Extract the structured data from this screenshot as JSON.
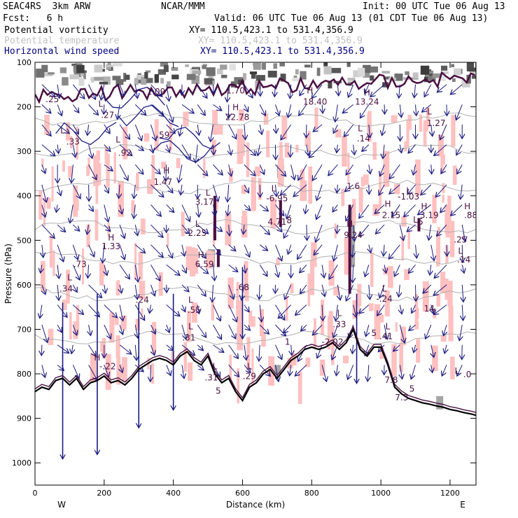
{
  "header": {
    "model": "SEAC4RS  3km ARW",
    "org": "NCAR/MMM",
    "init": "Init: 00 UTC Tue 06 Aug 13",
    "fcst": "Fcst:   6 h",
    "valid": "Valid: 06 UTC Tue 06 Aug 13 (01 CDT Tue 06 Aug 13)"
  },
  "fields": [
    {
      "name": "Potential vorticity",
      "range": "XY= 110.5,423.1 to 531.4,356.9",
      "color": "#000000"
    },
    {
      "name": "Potential temperature",
      "range": "XY= 110.5,423.1 to 531.4,356.9",
      "color": "#c0c0c0"
    },
    {
      "name": "Horizontal wind speed",
      "range": "XY= 110.5,423.1 to 531.4,356.9",
      "color": "#000080"
    }
  ],
  "colors": {
    "pv_shade": "#ffc0c0",
    "pv_contour": "#4a1040",
    "theta": "#b0b0b0",
    "wind": "#1a1a80",
    "terrain": "#000000"
  },
  "chart_data": {
    "type": "cross-section",
    "xlabel": "Distance (km)",
    "ylabel": "Pressure (hPa)",
    "xlim": [
      0,
      1275
    ],
    "ylim": [
      1050,
      100
    ],
    "x_ticks": [
      0,
      200,
      400,
      600,
      800,
      1000,
      1200
    ],
    "y_ticks": [
      100,
      200,
      300,
      400,
      500,
      600,
      700,
      800,
      900,
      1000
    ],
    "x_end_labels": {
      "left": "W",
      "right": "E"
    },
    "terrain_profile": [
      [
        0,
        840
      ],
      [
        20,
        830
      ],
      [
        40,
        835
      ],
      [
        60,
        815
      ],
      [
        80,
        810
      ],
      [
        100,
        825
      ],
      [
        120,
        810
      ],
      [
        140,
        835
      ],
      [
        160,
        820
      ],
      [
        180,
        815
      ],
      [
        200,
        805
      ],
      [
        220,
        820
      ],
      [
        240,
        815
      ],
      [
        260,
        825
      ],
      [
        280,
        810
      ],
      [
        300,
        790
      ],
      [
        320,
        780
      ],
      [
        340,
        770
      ],
      [
        360,
        765
      ],
      [
        380,
        770
      ],
      [
        400,
        780
      ],
      [
        420,
        760
      ],
      [
        440,
        750
      ],
      [
        460,
        770
      ],
      [
        480,
        780
      ],
      [
        500,
        760
      ],
      [
        520,
        800
      ],
      [
        540,
        820
      ],
      [
        560,
        810
      ],
      [
        580,
        840
      ],
      [
        600,
        860
      ],
      [
        620,
        830
      ],
      [
        640,
        820
      ],
      [
        660,
        800
      ],
      [
        680,
        790
      ],
      [
        700,
        810
      ],
      [
        720,
        790
      ],
      [
        740,
        770
      ],
      [
        760,
        760
      ],
      [
        780,
        745
      ],
      [
        800,
        740
      ],
      [
        820,
        745
      ],
      [
        840,
        740
      ],
      [
        860,
        730
      ],
      [
        880,
        745
      ],
      [
        900,
        730
      ],
      [
        920,
        700
      ],
      [
        940,
        745
      ],
      [
        960,
        760
      ],
      [
        980,
        740
      ],
      [
        1000,
        740
      ],
      [
        1020,
        780
      ],
      [
        1040,
        830
      ],
      [
        1060,
        845
      ],
      [
        1080,
        855
      ],
      [
        1100,
        860
      ],
      [
        1120,
        865
      ],
      [
        1140,
        868
      ],
      [
        1160,
        872
      ],
      [
        1180,
        875
      ],
      [
        1200,
        880
      ],
      [
        1220,
        883
      ],
      [
        1240,
        887
      ],
      [
        1260,
        890
      ],
      [
        1275,
        893
      ]
    ],
    "theta_levels": [
      [
        50,
        230
      ],
      [
        80,
        300
      ],
      [
        60,
        380
      ],
      [
        90,
        470
      ],
      [
        120,
        540
      ],
      [
        60,
        620
      ],
      [
        70,
        720
      ]
    ],
    "pv_labels": [
      {
        "x": 50,
        "p": 190,
        "text": ".25"
      },
      {
        "x": 80,
        "p": 260,
        "text": "L"
      },
      {
        "x": 110,
        "p": 285,
        "text": ".33"
      },
      {
        "x": 190,
        "p": 200,
        "text": "L"
      },
      {
        "x": 210,
        "p": 225,
        "text": ".27"
      },
      {
        "x": 350,
        "p": 172,
        "text": "1.09"
      },
      {
        "x": 580,
        "p": 170,
        "text": "1.70"
      },
      {
        "x": 370,
        "p": 270,
        "text": ".59"
      },
      {
        "x": 240,
        "p": 280,
        "text": "L"
      },
      {
        "x": 260,
        "p": 310,
        "text": ".92"
      },
      {
        "x": 380,
        "p": 350,
        "text": "H"
      },
      {
        "x": 370,
        "p": 375,
        "text": "1.47"
      },
      {
        "x": 580,
        "p": 208,
        "text": "H"
      },
      {
        "x": 585,
        "p": 230,
        "text": "22.78"
      },
      {
        "x": 795,
        "p": 170,
        "text": "H"
      },
      {
        "x": 810,
        "p": 195,
        "text": "18.40"
      },
      {
        "x": 960,
        "p": 175,
        "text": "H"
      },
      {
        "x": 960,
        "p": 195,
        "text": "13.24"
      },
      {
        "x": 940,
        "p": 255,
        "text": "L"
      },
      {
        "x": 950,
        "p": 278,
        "text": ".14"
      },
      {
        "x": 1140,
        "p": 217,
        "text": "L"
      },
      {
        "x": 1160,
        "p": 243,
        "text": "1.27"
      },
      {
        "x": 500,
        "p": 400,
        "text": "L"
      },
      {
        "x": 490,
        "p": 420,
        "text": "3.17"
      },
      {
        "x": 690,
        "p": 390,
        "text": "L"
      },
      {
        "x": 700,
        "p": 412,
        "text": "-6.95"
      },
      {
        "x": 700,
        "p": 465,
        "text": "4.71"
      },
      {
        "x": 735,
        "p": 462,
        "text": "8"
      },
      {
        "x": 920,
        "p": 385,
        "text": "1.6"
      },
      {
        "x": 1080,
        "p": 395,
        "text": "L"
      },
      {
        "x": 1080,
        "p": 408,
        "text": "-1.03"
      },
      {
        "x": 1020,
        "p": 425,
        "text": "H"
      },
      {
        "x": 1030,
        "p": 450,
        "text": "2.15"
      },
      {
        "x": 1125,
        "p": 430,
        "text": "H"
      },
      {
        "x": 1140,
        "p": 450,
        "text": "3.19"
      },
      {
        "x": 1250,
        "p": 430,
        "text": "H"
      },
      {
        "x": 1260,
        "p": 450,
        "text": ".88"
      },
      {
        "x": 910,
        "p": 470,
        "text": "H"
      },
      {
        "x": 920,
        "p": 495,
        "text": "9.24"
      },
      {
        "x": 1100,
        "p": 460,
        "text": "L"
      },
      {
        "x": 1115,
        "p": 465,
        "text": "5"
      },
      {
        "x": 470,
        "p": 470,
        "text": "L"
      },
      {
        "x": 465,
        "p": 490,
        "text": "-2.25"
      },
      {
        "x": 220,
        "p": 500,
        "text": "H"
      },
      {
        "x": 220,
        "p": 520,
        "text": "1.33"
      },
      {
        "x": 1230,
        "p": 505,
        "text": ".25"
      },
      {
        "x": 1230,
        "p": 530,
        "text": "L"
      },
      {
        "x": 1240,
        "p": 550,
        "text": ".14"
      },
      {
        "x": 480,
        "p": 540,
        "text": "H"
      },
      {
        "x": 490,
        "p": 560,
        "text": "6.59"
      },
      {
        "x": 130,
        "p": 560,
        "text": ".73"
      },
      {
        "x": 100,
        "p": 590,
        "text": "L"
      },
      {
        "x": 90,
        "p": 615,
        "text": ".34"
      },
      {
        "x": 600,
        "p": 612,
        "text": ".68"
      },
      {
        "x": 1010,
        "p": 615,
        "text": "L"
      },
      {
        "x": 1010,
        "p": 638,
        "text": "-.24"
      },
      {
        "x": 310,
        "p": 640,
        "text": ".24"
      },
      {
        "x": 450,
        "p": 640,
        "text": "L"
      },
      {
        "x": 460,
        "p": 663,
        "text": ".55"
      },
      {
        "x": 1140,
        "p": 660,
        "text": "14"
      },
      {
        "x": 880,
        "p": 670,
        "text": "L"
      },
      {
        "x": 880,
        "p": 695,
        "text": ".33"
      },
      {
        "x": 450,
        "p": 700,
        "text": "L"
      },
      {
        "x": 445,
        "p": 725,
        "text": ".31"
      },
      {
        "x": 730,
        "p": 735,
        "text": "1"
      },
      {
        "x": 860,
        "p": 735,
        "text": "-2.02"
      },
      {
        "x": 980,
        "p": 715,
        "text": "5"
      },
      {
        "x": 1020,
        "p": 700,
        "text": "L"
      },
      {
        "x": 1015,
        "p": 722,
        "text": ".41"
      },
      {
        "x": 520,
        "p": 790,
        "text": "L"
      },
      {
        "x": 620,
        "p": 790,
        "text": "L"
      },
      {
        "x": 510,
        "p": 815,
        "text": ".31"
      },
      {
        "x": 620,
        "p": 812,
        "text": ".29"
      },
      {
        "x": 210,
        "p": 790,
        "text": "-.22"
      },
      {
        "x": 180,
        "p": 770,
        "text": "H"
      },
      {
        "x": 530,
        "p": 845,
        "text": "5"
      },
      {
        "x": 1220,
        "p": 800,
        "text": "L"
      },
      {
        "x": 1250,
        "p": 808,
        "text": ".0"
      },
      {
        "x": 1030,
        "p": 820,
        "text": "7.8"
      },
      {
        "x": 1060,
        "p": 860,
        "text": "7.3"
      },
      {
        "x": 1090,
        "p": 840,
        "text": "5"
      }
    ]
  }
}
